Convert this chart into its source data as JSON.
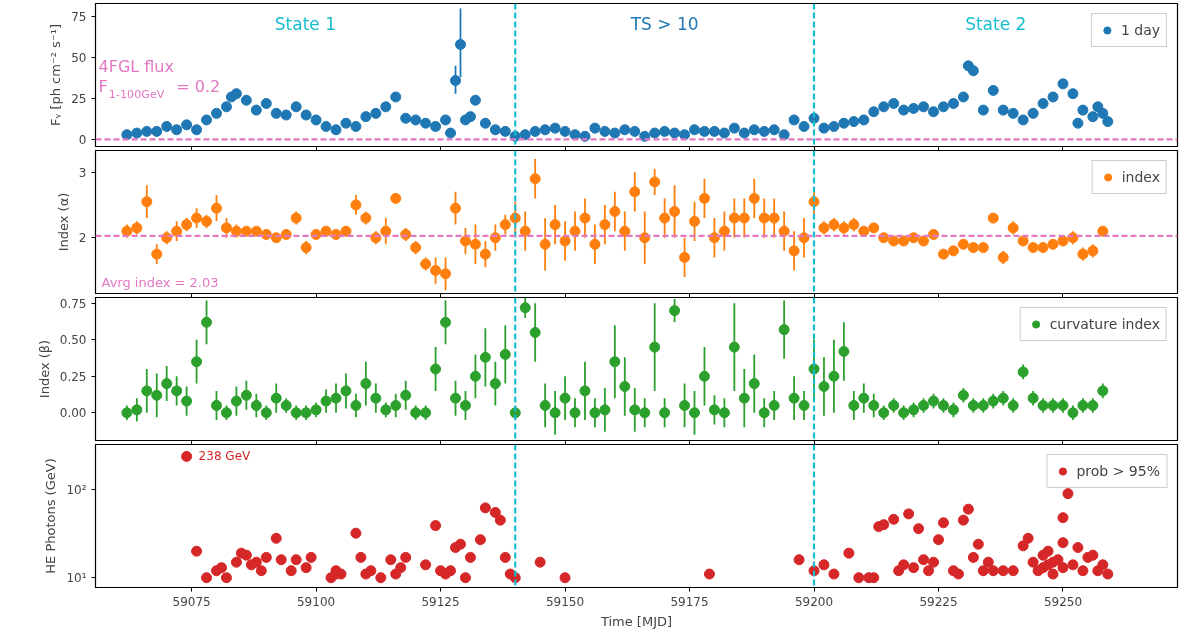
{
  "chart_data": [
    {
      "type": "scatter",
      "ylabel": "Fᵧ [ph cm⁻² s⁻¹]",
      "xlim": [
        59055.7,
        59273
      ],
      "xticks": [
        59075,
        59100,
        59125,
        59150,
        59175,
        59200,
        59225,
        59250
      ],
      "ylim": [
        -4.2,
        83
      ],
      "yticks": [
        0,
        25,
        50,
        75
      ],
      "tick_labels": "y",
      "grid": false,
      "legend": "top right",
      "marker": "circle",
      "annotations": [
        "State 1",
        "TS > 10",
        "State 2"
      ],
      "ref_lines": [
        {
          "axis": "x",
          "value": 59140,
          "color": "#17becf",
          "line_style": "dashed"
        },
        {
          "axis": "x",
          "value": 59200,
          "color": "#17becf",
          "line_style": "dashed"
        },
        {
          "axis": "y",
          "value": 0.2,
          "label": "4FGL flux\nF$_{1-100GeV}$ = 0.2",
          "color": "#e377c2",
          "line_style": "dashed"
        }
      ],
      "series": [
        {
          "name": "1 day",
          "color": "#1f77b4",
          "x": [
            59062,
            59064,
            59066,
            59068,
            59070,
            59072,
            59074,
            59076,
            59078,
            59080,
            59082,
            59083,
            59084,
            59086,
            59088,
            59090,
            59092,
            59094,
            59096,
            59098,
            59100,
            59102,
            59104,
            59106,
            59108,
            59110,
            59112,
            59114,
            59116,
            59118,
            59120,
            59122,
            59124,
            59126,
            59127,
            59128,
            59129,
            59130,
            59131,
            59132,
            59134,
            59136,
            59138,
            59140,
            59142,
            59144,
            59146,
            59148,
            59150,
            59152,
            59154,
            59156,
            59158,
            59160,
            59162,
            59164,
            59166,
            59168,
            59170,
            59172,
            59174,
            59176,
            59178,
            59180,
            59182,
            59184,
            59186,
            59188,
            59190,
            59192,
            59194,
            59196,
            59198,
            59200,
            59202,
            59204,
            59206,
            59208,
            59210,
            59212,
            59214,
            59216,
            59218,
            59220,
            59222,
            59224,
            59226,
            59228,
            59230,
            59231,
            59232,
            59234,
            59236,
            59238,
            59240,
            59242,
            59244,
            59246,
            59248,
            59250,
            59252,
            59253,
            59254,
            59256,
            59257,
            59258,
            59259
          ],
          "values": [
            3,
            4,
            5,
            5,
            8,
            6,
            9,
            6,
            12,
            16,
            20,
            26,
            28,
            24,
            18,
            22,
            16,
            15,
            20,
            15,
            12,
            8,
            6,
            10,
            8,
            14,
            16,
            20,
            26,
            13,
            12,
            10,
            8,
            12,
            4,
            36,
            58,
            12,
            14,
            24,
            10,
            6,
            5,
            2,
            3,
            5,
            6,
            7,
            5,
            3,
            2,
            7,
            5,
            4,
            6,
            5,
            2,
            4,
            5,
            4,
            3,
            6,
            5,
            5,
            4,
            7,
            4,
            6,
            5,
            6,
            3,
            12,
            8,
            13,
            7,
            8,
            10,
            11,
            12,
            17,
            20,
            22,
            18,
            19,
            20,
            17,
            20,
            22,
            26,
            45,
            42,
            18,
            30,
            18,
            16,
            12,
            16,
            22,
            26,
            34,
            28,
            10,
            18,
            14,
            20,
            16,
            11
          ],
          "errors": [
            null,
            null,
            null,
            null,
            null,
            null,
            null,
            null,
            null,
            null,
            null,
            null,
            null,
            null,
            null,
            null,
            null,
            null,
            null,
            null,
            null,
            null,
            null,
            null,
            null,
            null,
            null,
            null,
            null,
            null,
            null,
            null,
            null,
            null,
            null,
            [
              28,
              45
            ],
            [
              38,
              80
            ],
            null,
            null,
            null,
            null,
            null,
            null,
            null,
            null,
            null,
            null,
            null,
            null,
            null,
            null,
            null,
            null,
            null,
            null,
            null,
            null,
            null,
            null,
            null,
            null,
            null,
            null,
            null,
            null,
            null,
            null,
            null,
            null,
            null,
            null,
            null,
            null,
            null,
            null,
            null,
            null,
            null,
            null,
            null,
            null,
            null,
            null,
            null,
            null,
            null,
            null,
            null,
            null,
            null,
            null,
            null,
            null,
            null,
            null,
            null,
            null,
            null,
            null,
            null,
            null,
            null,
            null,
            null,
            null,
            null,
            null
          ]
        }
      ]
    },
    {
      "type": "scatter",
      "ylabel": "Index (α)",
      "xlim": [
        59055.7,
        59273
      ],
      "xticks": [
        59075,
        59100,
        59125,
        59150,
        59175,
        59200,
        59225,
        59250
      ],
      "ylim": [
        1.15,
        3.33
      ],
      "yticks": [
        2,
        3
      ],
      "tick_labels": "y",
      "grid": false,
      "legend": "top right",
      "marker": "circle",
      "ref_lines": [
        {
          "axis": "x",
          "value": 59140,
          "color": "#17becf",
          "line_style": "dashed"
        },
        {
          "axis": "x",
          "value": 59200,
          "color": "#17becf",
          "line_style": "dashed"
        },
        {
          "axis": "y",
          "value": 2.03,
          "label": "Avrg index = 2.03",
          "color": "#e377c2",
          "line_style": "dashed"
        }
      ],
      "series": [
        {
          "name": "index",
          "color": "#ff7f0e",
          "x": [
            59062,
            59064,
            59066,
            59068,
            59070,
            59072,
            59074,
            59076,
            59078,
            59080,
            59082,
            59084,
            59086,
            59088,
            59090,
            59092,
            59094,
            59096,
            59098,
            59100,
            59102,
            59104,
            59106,
            59108,
            59110,
            59112,
            59114,
            59116,
            59118,
            59120,
            59122,
            59124,
            59126,
            59128,
            59130,
            59132,
            59134,
            59136,
            59138,
            59140,
            59142,
            59144,
            59146,
            59148,
            59150,
            59152,
            59154,
            59156,
            59158,
            59160,
            59162,
            59164,
            59166,
            59168,
            59170,
            59172,
            59174,
            59176,
            59178,
            59180,
            59182,
            59184,
            59186,
            59188,
            59190,
            59192,
            59194,
            59196,
            59198,
            59200,
            59202,
            59204,
            59206,
            59208,
            59210,
            59212,
            59214,
            59216,
            59218,
            59220,
            59222,
            59224,
            59226,
            59228,
            59230,
            59232,
            59234,
            59236,
            59238,
            59240,
            59242,
            59244,
            59246,
            59248,
            59250,
            59252,
            59254,
            59256,
            59258
          ],
          "values": [
            2.1,
            2.15,
            2.55,
            1.75,
            2.0,
            2.1,
            2.2,
            2.3,
            2.25,
            2.45,
            2.15,
            2.1,
            2.1,
            2.1,
            2.05,
            2.0,
            2.05,
            2.3,
            1.85,
            2.05,
            2.1,
            2.05,
            2.1,
            2.5,
            2.3,
            2.0,
            2.1,
            2.6,
            2.05,
            1.85,
            1.6,
            1.5,
            1.45,
            2.45,
            1.95,
            1.9,
            1.75,
            2.0,
            2.2,
            2.3,
            2.1,
            2.9,
            1.9,
            2.2,
            1.95,
            2.1,
            2.3,
            1.9,
            2.2,
            2.4,
            2.1,
            2.7,
            2.0,
            2.85,
            2.3,
            2.4,
            1.7,
            2.25,
            2.6,
            2.0,
            2.1,
            2.3,
            2.3,
            2.6,
            2.3,
            2.3,
            2.1,
            1.8,
            2.0,
            2.55,
            2.15,
            2.2,
            2.15,
            2.2,
            2.1,
            2.15,
            2.0,
            1.95,
            1.95,
            2.0,
            1.95,
            2.05,
            1.75,
            1.8,
            1.9,
            1.85,
            1.85,
            2.3,
            1.7,
            2.15,
            1.95,
            1.85,
            1.85,
            1.9,
            1.95,
            2.0,
            1.75,
            1.8,
            2.1
          ],
          "errors": [
            0.1,
            0.1,
            0.25,
            0.15,
            0.1,
            0.15,
            0.1,
            0.15,
            0.1,
            0.2,
            0.15,
            0.1,
            0.05,
            0.05,
            0.05,
            0.05,
            0.05,
            0.1,
            0.1,
            0.05,
            0.05,
            0.05,
            0.05,
            0.15,
            0.1,
            0.1,
            0.2,
            0.05,
            0.1,
            0.1,
            0.1,
            0.2,
            0.25,
            0.25,
            0.2,
            0.3,
            0.2,
            0.2,
            0.15,
            0.25,
            0.3,
            0.3,
            0.4,
            0.3,
            0.3,
            0.3,
            0.3,
            0.3,
            0.3,
            0.3,
            0.3,
            0.3,
            0.4,
            0.2,
            0.3,
            0.4,
            0.3,
            0.3,
            0.3,
            0.3,
            0.3,
            0.3,
            0.3,
            0.3,
            0.3,
            0.3,
            0.3,
            0.3,
            0.3,
            0.2,
            0.1,
            0.1,
            0.1,
            0.1,
            0.05,
            0.05,
            0.05,
            0.05,
            0.05,
            0.05,
            0.05,
            0.05,
            0.05,
            0.05,
            0.05,
            0.05,
            0.05,
            0.05,
            0.1,
            0.1,
            0.05,
            0.05,
            0.05,
            0.05,
            0.05,
            0.1,
            0.1,
            0.1,
            0.05
          ]
        }
      ]
    },
    {
      "type": "scatter",
      "ylabel": "Index (β)",
      "xlim": [
        59055.7,
        59273
      ],
      "xticks": [
        59075,
        59100,
        59125,
        59150,
        59175,
        59200,
        59225,
        59250
      ],
      "ylim": [
        -0.19,
        0.79
      ],
      "yticks": [
        {
          "value": 0,
          "label": "0.00"
        },
        0.25,
        {
          "value": 0.5,
          "label": "0.50"
        },
        0.75
      ],
      "tick_labels": "y",
      "grid": false,
      "legend": "top right",
      "marker": "circle",
      "ref_lines": [
        {
          "axis": "x",
          "value": 59140,
          "color": "#17becf",
          "line_style": "dashed"
        },
        {
          "axis": "x",
          "value": 59200,
          "color": "#17becf",
          "line_style": "dashed"
        }
      ],
      "series": [
        {
          "name": "curvature index",
          "color": "#2ca02c",
          "x": [
            59062,
            59064,
            59066,
            59068,
            59070,
            59072,
            59074,
            59076,
            59078,
            59080,
            59082,
            59084,
            59086,
            59088,
            59090,
            59092,
            59094,
            59096,
            59098,
            59100,
            59102,
            59104,
            59106,
            59108,
            59110,
            59112,
            59114,
            59116,
            59118,
            59120,
            59122,
            59124,
            59126,
            59128,
            59130,
            59132,
            59134,
            59136,
            59138,
            59140,
            59142,
            59144,
            59146,
            59148,
            59150,
            59152,
            59154,
            59156,
            59158,
            59160,
            59162,
            59164,
            59166,
            59168,
            59170,
            59172,
            59174,
            59176,
            59178,
            59180,
            59182,
            59184,
            59186,
            59188,
            59190,
            59192,
            59194,
            59196,
            59198,
            59200,
            59202,
            59204,
            59206,
            59208,
            59210,
            59212,
            59214,
            59216,
            59218,
            59220,
            59222,
            59224,
            59226,
            59228,
            59230,
            59232,
            59234,
            59236,
            59238,
            59240,
            59242,
            59244,
            59246,
            59248,
            59250,
            59252,
            59254,
            59256,
            59258
          ],
          "values": [
            0.0,
            0.02,
            0.15,
            0.12,
            0.2,
            0.15,
            0.08,
            0.35,
            0.62,
            0.05,
            0.0,
            0.08,
            0.12,
            0.05,
            0.0,
            0.1,
            0.05,
            0.0,
            0.0,
            0.02,
            0.08,
            0.1,
            0.15,
            0.05,
            0.2,
            0.1,
            0.02,
            0.05,
            0.12,
            0.0,
            0.0,
            0.3,
            0.62,
            0.1,
            0.05,
            0.25,
            0.38,
            0.2,
            0.4,
            0.0,
            0.72,
            0.55,
            0.05,
            0.0,
            0.1,
            0.0,
            0.15,
            0.0,
            0.02,
            0.35,
            0.18,
            0.02,
            0.0,
            0.45,
            0.0,
            0.7,
            0.05,
            0.0,
            0.25,
            0.02,
            0.0,
            0.45,
            0.1,
            0.2,
            0.0,
            0.05,
            0.57,
            0.1,
            0.05,
            0.3,
            0.18,
            0.25,
            0.42,
            0.05,
            0.1,
            0.05,
            0.0,
            0.05,
            0.0,
            0.02,
            0.05,
            0.08,
            0.05,
            0.02,
            0.12,
            0.05,
            0.05,
            0.08,
            0.1,
            0.05,
            0.28,
            0.1,
            0.05,
            0.05,
            0.05,
            0.0,
            0.05,
            0.05,
            0.15
          ],
          "errors": [
            0.05,
            0.08,
            0.15,
            0.15,
            0.12,
            0.1,
            0.1,
            0.15,
            0.15,
            0.1,
            0.05,
            0.1,
            0.1,
            0.08,
            0.05,
            0.1,
            0.05,
            0.05,
            0.05,
            0.05,
            0.08,
            0.1,
            0.12,
            0.08,
            0.15,
            0.1,
            0.05,
            0.08,
            0.1,
            0.05,
            0.05,
            0.15,
            0.15,
            0.12,
            0.1,
            0.15,
            0.2,
            0.15,
            0.2,
            null,
            0.07,
            0.2,
            0.15,
            0.15,
            0.15,
            0.1,
            0.2,
            0.1,
            0.15,
            0.25,
            0.2,
            0.15,
            0.1,
            0.3,
            0.1,
            0.08,
            0.15,
            0.15,
            0.2,
            0.1,
            0.1,
            0.3,
            0.2,
            0.2,
            0.1,
            0.1,
            0.2,
            0.15,
            0.1,
            0.2,
            0.2,
            0.25,
            0.2,
            0.1,
            0.1,
            0.08,
            0.05,
            0.05,
            0.05,
            0.05,
            0.05,
            0.05,
            0.05,
            0.05,
            0.05,
            0.05,
            0.05,
            0.05,
            0.05,
            0.05,
            0.05,
            0.05,
            0.05,
            0.05,
            0.05,
            0.05,
            0.05,
            0.05,
            0.05
          ]
        }
      ]
    },
    {
      "type": "scatter",
      "xlabel": "Time [MJD]",
      "ylabel": "HE Photons (GeV)",
      "log": "y",
      "xlim": [
        59055.7,
        59273
      ],
      "xticks": [
        59075,
        59100,
        59125,
        59150,
        59175,
        59200,
        59225,
        59250
      ],
      "ylim": [
        7.74,
        325
      ],
      "yticks": [
        {
          "value": 10,
          "label": "10¹"
        },
        {
          "value": 100,
          "label": "10²"
        }
      ],
      "grid": false,
      "legend": "top right",
      "marker": "circle",
      "annotations": [
        {
          "text": "238 GeV",
          "x": 59074,
          "y": 238
        }
      ],
      "ref_lines": [
        {
          "axis": "x",
          "value": 59140,
          "color": "#17becf",
          "line_style": "dashed"
        },
        {
          "axis": "x",
          "value": 59200,
          "color": "#17becf",
          "line_style": "dashed"
        }
      ],
      "series": [
        {
          "name": "prob > 95%",
          "color": "#d62728",
          "x": [
            59074,
            59076,
            59078,
            59080,
            59081,
            59082,
            59084,
            59085,
            59086,
            59087,
            59088,
            59089,
            59090,
            59092,
            59093,
            59095,
            59096,
            59098,
            59099,
            59103,
            59104,
            59105,
            59104,
            59108,
            59109,
            59110,
            59111,
            59113,
            59115,
            59116,
            59117,
            59118,
            59122,
            59124,
            59125,
            59126,
            59127,
            59128,
            59129,
            59130,
            59131,
            59133,
            59134,
            59136,
            59137,
            59138,
            59139,
            59140,
            59145,
            59150,
            59179,
            59197,
            59200,
            59202,
            59204,
            59207,
            59209,
            59211,
            59212,
            59213,
            59214,
            59216,
            59217,
            59218,
            59219,
            59220,
            59221,
            59222,
            59223,
            59224,
            59225,
            59226,
            59228,
            59229,
            59230,
            59231,
            59232,
            59233,
            59234,
            59235,
            59236,
            59238,
            59240,
            59242,
            59243,
            59244,
            59245,
            59246,
            59247,
            59248,
            59249,
            59250,
            59250,
            59251,
            59250,
            59252,
            59253,
            59254,
            59255,
            59256,
            59257,
            59258,
            59259,
            59246,
            59247,
            59248
          ],
          "values": [
            238,
            20,
            10,
            12,
            13,
            10,
            15,
            19,
            18,
            14,
            15,
            12,
            17,
            28,
            16,
            12,
            16,
            13,
            17,
            10,
            11,
            11,
            12,
            32,
            17,
            11,
            12,
            10,
            16,
            11,
            13,
            17,
            14,
            39,
            12,
            11,
            12,
            22,
            24,
            10,
            17,
            27,
            62,
            55,
            45,
            17,
            11,
            10,
            15,
            10,
            11,
            16,
            12,
            14,
            11,
            19,
            10,
            10,
            10,
            38,
            40,
            46,
            12,
            14,
            53,
            13,
            36,
            16,
            12,
            15,
            27,
            42,
            12,
            11,
            45,
            60,
            17,
            24,
            12,
            15,
            12,
            12,
            12,
            23,
            28,
            15,
            12,
            13,
            20,
            15,
            16,
            25,
            13,
            90,
            48,
            14,
            22,
            12,
            17,
            18,
            12,
            14,
            11,
            18,
            14,
            11
          ]
        }
      ]
    }
  ]
}
